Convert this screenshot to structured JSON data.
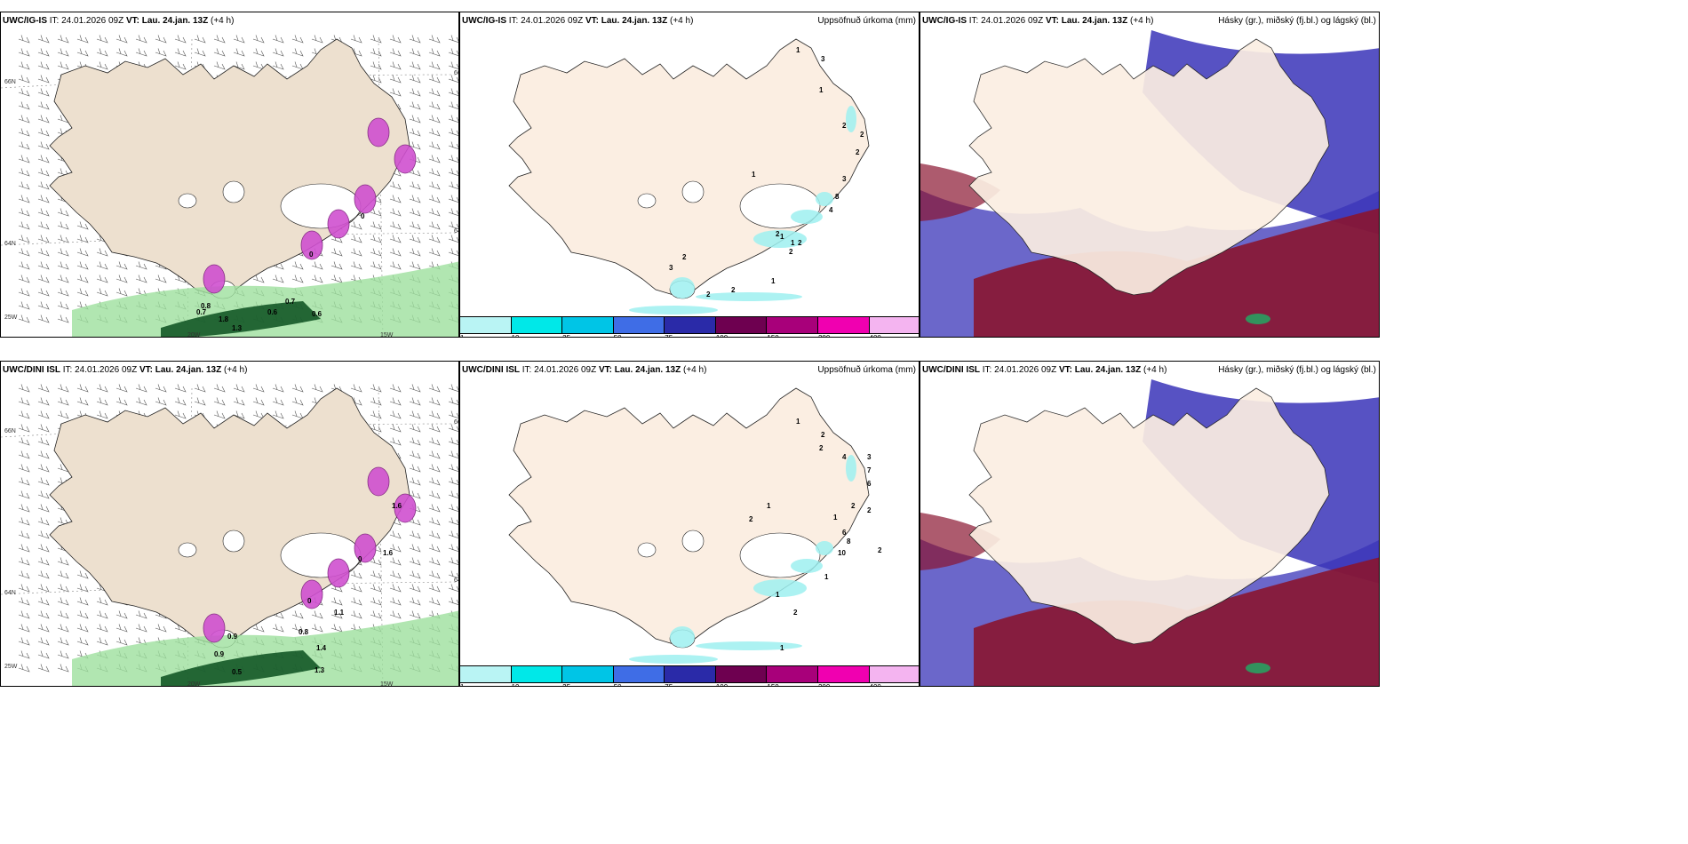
{
  "panels": [
    {
      "id": "p1",
      "model": "UWC/IG-IS",
      "it": "IT: 24.01.2026 09Z",
      "vt_label": "VT:",
      "vt": "Lau. 24.jan. 13Z",
      "lead": "(+4 h)",
      "field": "",
      "labels": [
        "0",
        "0",
        "0.8",
        "0.6",
        "0.7",
        "0.6",
        "1.3",
        "1.8",
        "0.7"
      ],
      "axis": [
        "66N",
        "64N",
        "25W",
        "20W",
        "15W",
        "66N",
        "64N"
      ]
    },
    {
      "id": "p2",
      "model": "UWC/IG-IS",
      "it": "IT: 24.01.2026 09Z",
      "vt_label": "VT:",
      "vt": "Lau. 24.jan. 13Z",
      "lead": "(+4 h)",
      "field": "Uppsöfnuð úrkoma (mm)",
      "labels": [
        "1",
        "3",
        "1",
        "2",
        "3",
        "2",
        "2",
        "1",
        "3",
        "8",
        "4",
        "2",
        "1",
        "2",
        "2",
        "1",
        "1",
        "2",
        "2",
        "2"
      ]
    },
    {
      "id": "p3",
      "model": "UWC/IG-IS",
      "it": "IT: 24.01.2026 09Z",
      "vt_label": "VT:",
      "vt": "Lau. 24.jan. 13Z",
      "lead": "(+4 h)",
      "field": "Hásky (gr.), miðský (fj.bl.) og lágský (bl.)"
    },
    {
      "id": "p4",
      "model": "UWC/DINI ISL",
      "it": "IT: 24.01.2026 09Z",
      "vt_label": "VT:",
      "vt": "Lau. 24.jan. 13Z",
      "lead": "(+4 h)",
      "field": "",
      "labels": [
        "1.6",
        "1.6",
        "0",
        "0",
        "0.9",
        "0.8",
        "0.9",
        "1.4",
        "0.5",
        "1.3",
        "1.1"
      ],
      "axis": [
        "66N",
        "64N",
        "25W",
        "20W",
        "15W",
        "66N",
        "64N"
      ]
    },
    {
      "id": "p5",
      "model": "UWC/DINI ISL",
      "it": "IT: 24.01.2026 09Z",
      "vt_label": "VT:",
      "vt": "Lau. 24.jan. 13Z",
      "lead": "(+4 h)",
      "field": "Uppsöfnuð úrkoma (mm)",
      "labels": [
        "1",
        "2",
        "2",
        "4",
        "3",
        "7",
        "6",
        "2",
        "2",
        "1",
        "6",
        "8",
        "10",
        "2",
        "1",
        "2",
        "1",
        "2",
        "1",
        "1"
      ]
    },
    {
      "id": "p6",
      "model": "UWC/DINI ISL",
      "it": "IT: 24.01.2026 09Z",
      "vt_label": "VT:",
      "vt": "Lau. 24.jan. 13Z",
      "lead": "(+4 h)",
      "field": "Hásky (gr.), miðský (fj.bl.) og lágský (bl.)"
    }
  ],
  "colorbar": {
    "ticks": [
      "1",
      "10",
      "25",
      "50",
      "75",
      "100",
      "150",
      "200",
      "400"
    ],
    "colors": [
      "#b9f4f4",
      "#00e8e8",
      "#00c5e6",
      "#3f6de6",
      "#2a2aa8",
      "#6e0050",
      "#a8007a",
      "#f000b0",
      "#f4b4f0"
    ]
  },
  "colors": {
    "land": "#fbeee2",
    "land_wind": "#ede0cf",
    "precip_green": "#9ee09e",
    "precip_dark": "#0a4f1e",
    "cloud_high": "#3a34b8",
    "cloud_mid": "#8a1530",
    "cloud_low": "#29a060"
  }
}
